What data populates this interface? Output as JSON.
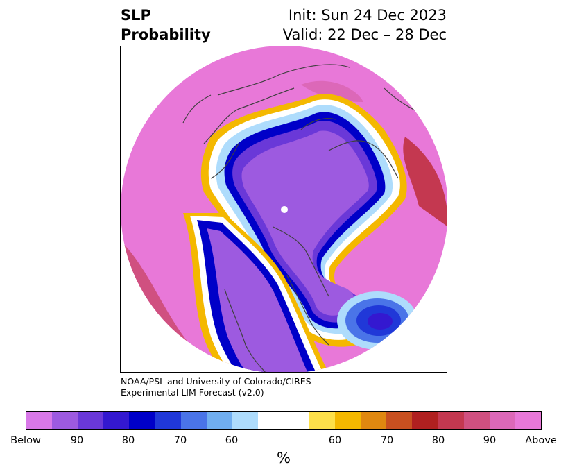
{
  "title": {
    "left_line1": "SLP",
    "left_line2": "Probability",
    "right_line1": "Init: Sun 24 Dec 2023",
    "right_line2": "Valid: 22 Dec – 28 Dec"
  },
  "credit": {
    "line1": "NOAA/PSL and University of Colorado/CIRES",
    "line2": "Experimental LIM Forecast (v2.0)"
  },
  "colorbar": {
    "label": "%",
    "colors": [
      "#d878e8",
      "#9d5ae0",
      "#6a38d8",
      "#3418d0",
      "#0000c8",
      "#2038d8",
      "#4a74e8",
      "#70aef0",
      "#aedcfc",
      "#ffffff",
      "#fde04a",
      "#f4b800",
      "#e08810",
      "#c85020",
      "#b02020",
      "#c43850",
      "#d05080",
      "#dc68b8",
      "#e878d8"
    ],
    "ticks": [
      "Below",
      "90",
      "80",
      "70",
      "60",
      "60",
      "70",
      "80",
      "90",
      "Above"
    ]
  },
  "map": {
    "projection": "north-polar-stereographic",
    "fields": "SLP tercile probability (below / above normal)"
  }
}
